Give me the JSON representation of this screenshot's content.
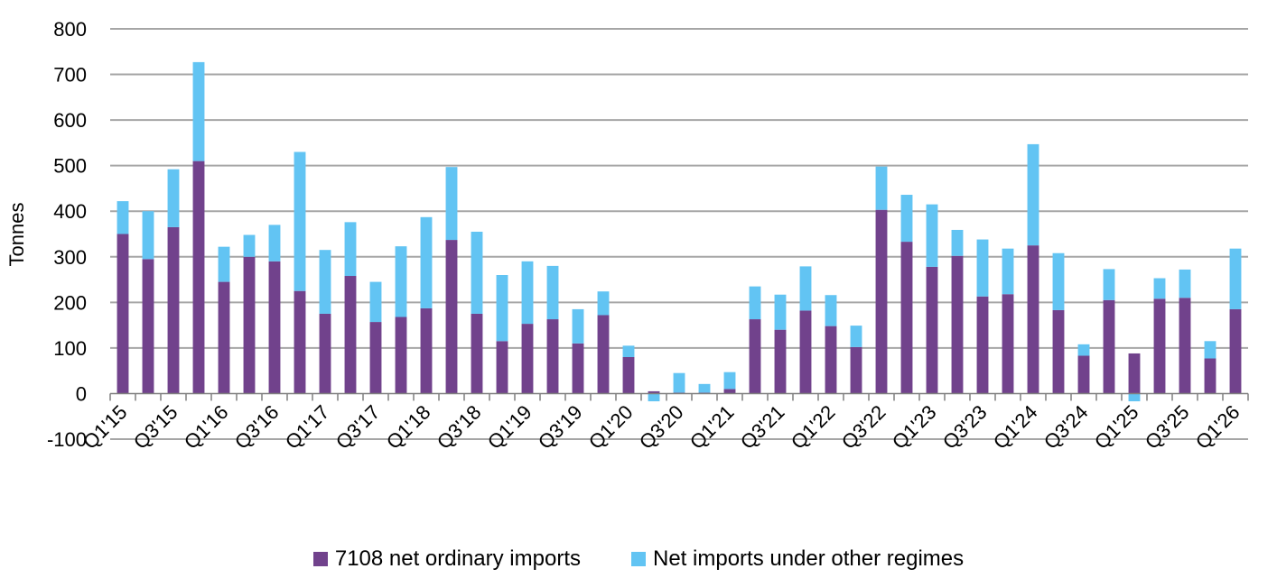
{
  "chart_data": {
    "type": "bar",
    "stacked": true,
    "ylabel": "Tonnes",
    "xlabel": "",
    "ylim": [
      -100,
      800
    ],
    "yticks": [
      -100,
      0,
      100,
      200,
      300,
      400,
      500,
      600,
      700,
      800
    ],
    "grid": true,
    "legend_position": "bottom",
    "categories": [
      "Q1'15",
      "Q2'15",
      "Q3'15",
      "Q4'15",
      "Q1'16",
      "Q2'16",
      "Q3'16",
      "Q4'16",
      "Q1'17",
      "Q2'17",
      "Q3'17",
      "Q4'17",
      "Q1'18",
      "Q2'18",
      "Q3'18",
      "Q4'18",
      "Q1'19",
      "Q2'19",
      "Q3'19",
      "Q4'19",
      "Q1'20",
      "Q2'20",
      "Q3'20",
      "Q4'20",
      "Q1'21",
      "Q2'21",
      "Q3'21",
      "Q4'21",
      "Q1'22",
      "Q2'22",
      "Q3'22",
      "Q4'22",
      "Q1'23",
      "Q2'23",
      "Q3'23",
      "Q4'23",
      "Q1'24",
      "Q2'24",
      "Q3'24",
      "Q4'24",
      "Q1'25",
      "Q2'25",
      "Q3'25",
      "Q4'25",
      "Q1'26"
    ],
    "tick_labels": [
      "Q1'15",
      "Q3'15",
      "Q1'16",
      "Q3'16",
      "Q1'17",
      "Q3'17",
      "Q1'18",
      "Q3'18",
      "Q1'19",
      "Q3'19",
      "Q1'20",
      "Q3'20",
      "Q1'21",
      "Q3'21",
      "Q1'22",
      "Q3'22",
      "Q1'23",
      "Q3'23",
      "Q1'24",
      "Q3'24",
      "Q1'25",
      "Q3'25",
      "Q1'26"
    ],
    "series": [
      {
        "name": "7108 net ordinary imports",
        "color": "#71428c",
        "values": [
          350,
          295,
          365,
          510,
          245,
          300,
          290,
          225,
          175,
          258,
          157,
          168,
          187,
          337,
          175,
          115,
          153,
          163,
          110,
          172,
          80,
          5,
          2,
          2,
          10,
          163,
          140,
          182,
          148,
          102,
          403,
          333,
          278,
          302,
          213,
          218,
          325,
          183,
          83,
          205,
          88,
          208,
          210,
          77,
          185
        ]
      },
      {
        "name": "Net imports under other regimes",
        "color": "#62c4f3",
        "values": [
          72,
          105,
          127,
          217,
          77,
          48,
          80,
          305,
          140,
          118,
          88,
          155,
          200,
          160,
          180,
          145,
          137,
          117,
          75,
          52,
          25,
          -17,
          43,
          19,
          37,
          72,
          77,
          97,
          68,
          47,
          95,
          103,
          137,
          57,
          125,
          100,
          222,
          125,
          25,
          68,
          -17,
          45,
          62,
          38,
          133
        ]
      }
    ]
  }
}
